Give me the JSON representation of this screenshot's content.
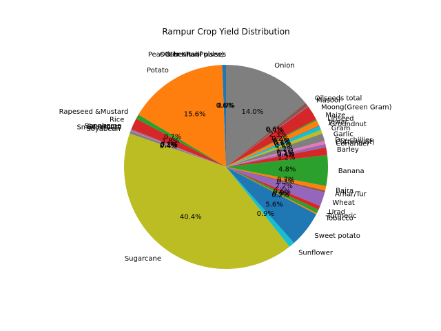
{
  "chart_data": {
    "type": "pie",
    "title": "Rampur Crop Yield Distribution",
    "start_angle_deg": 90,
    "counterclock": true,
    "slices": [
      {
        "label": "Peas & beans (Pulses)",
        "value": 0.6,
        "pct_label": "0.6%",
        "color": "#1f77b4"
      },
      {
        "label": "Potato",
        "value": 15.6,
        "pct_label": "15.6%",
        "color": "#ff7f0e"
      },
      {
        "label": "Rapeseed &Mustard",
        "value": 0.7,
        "pct_label": "0.7%",
        "color": "#2ca02c"
      },
      {
        "label": "Rice",
        "value": 1.8,
        "pct_label": "1.8%",
        "color": "#d62728"
      },
      {
        "label": "Sannhamp",
        "value": 0.1,
        "pct_label": "0.1%",
        "color": "#9467bd"
      },
      {
        "label": "Sesamum",
        "value": 0.1,
        "pct_label": "0.1%",
        "color": "#8c564b"
      },
      {
        "label": "Small millets",
        "value": 0.1,
        "pct_label": "0.1%",
        "color": "#e377c2"
      },
      {
        "label": "Soyabean",
        "value": 0.4,
        "pct_label": "0.4%",
        "color": "#7f7f7f"
      },
      {
        "label": "Sugarcane",
        "value": 40.4,
        "pct_label": "40.4%",
        "color": "#bcbd22"
      },
      {
        "label": "Sunflower",
        "value": 0.9,
        "pct_label": "0.9%",
        "color": "#17becf"
      },
      {
        "label": "Sweet potato",
        "value": 5.6,
        "pct_label": "5.6%",
        "color": "#1f77b4"
      },
      {
        "label": "Tobacco",
        "value": 0.2,
        "pct_label": "0.2%",
        "color": "#ff7f0e"
      },
      {
        "label": "Turmeric",
        "value": 0.6,
        "pct_label": "0.6%",
        "color": "#2ca02c"
      },
      {
        "label": "Urad",
        "value": 0.6,
        "pct_label": "0.6%",
        "color": "#d62728"
      },
      {
        "label": "Wheat",
        "value": 2.2,
        "pct_label": "2.2%",
        "color": "#9467bd"
      },
      {
        "label": "Arhar/Tur",
        "value": 0.3,
        "pct_label": "0.3%",
        "color": "#8c564b"
      },
      {
        "label": "Bajra",
        "value": 0.7,
        "pct_label": "0.7%",
        "color": "#ff7f0e"
      },
      {
        "label": "Banana",
        "value": 4.8,
        "pct_label": "4.8%",
        "color": "#2ca02c"
      },
      {
        "label": "Barley",
        "value": 1.2,
        "pct_label": "1.2%",
        "color": "#d62728"
      },
      {
        "label": "Coriander",
        "value": 0.4,
        "pct_label": "0.4%",
        "color": "#9467bd"
      },
      {
        "label": "Cotton(lint)",
        "value": 0.1,
        "pct_label": "0.1%",
        "color": "#8c564b"
      },
      {
        "label": "Dry chillies",
        "value": 0.5,
        "pct_label": "0.5%",
        "color": "#e377c2"
      },
      {
        "label": "Garlic",
        "value": 1.2,
        "pct_label": "1.2%",
        "color": "#7f7f7f"
      },
      {
        "label": "Gram",
        "value": 0.6,
        "pct_label": "0.6%",
        "color": "#bcbd22"
      },
      {
        "label": "Groundnut",
        "value": 0.6,
        "pct_label": "0.6%",
        "color": "#17becf"
      },
      {
        "label": "Jowar",
        "value": 0.1,
        "pct_label": "0.1%",
        "color": "#1f77b4"
      },
      {
        "label": "Linseed",
        "value": 0.9,
        "pct_label": "0.9%",
        "color": "#ff7f0e"
      },
      {
        "label": "Maize",
        "value": 0.2,
        "pct_label": "0.2%",
        "color": "#2ca02c"
      },
      {
        "label": "Moong(Green Gram)",
        "value": 2.3,
        "pct_label": "2.3%",
        "color": "#d62728"
      },
      {
        "label": "Masoor",
        "value": 0.1,
        "pct_label": "0.1%",
        "color": "#9467bd"
      },
      {
        "label": "Oilseeds total",
        "value": 0.6,
        "pct_label": "0.6%",
        "color": "#8c564b"
      },
      {
        "label": "Onion",
        "value": 14.0,
        "pct_label": "14.0%",
        "color": "#7f7f7f"
      },
      {
        "label": "Other Kharif pulses",
        "value": 0.0,
        "pct_label": "0.0%",
        "color": "#e377c2"
      },
      {
        "label": "Other  Rabi pulses",
        "value": 0.0,
        "pct_label": "0.0%",
        "color": "#e377c2"
      }
    ]
  }
}
